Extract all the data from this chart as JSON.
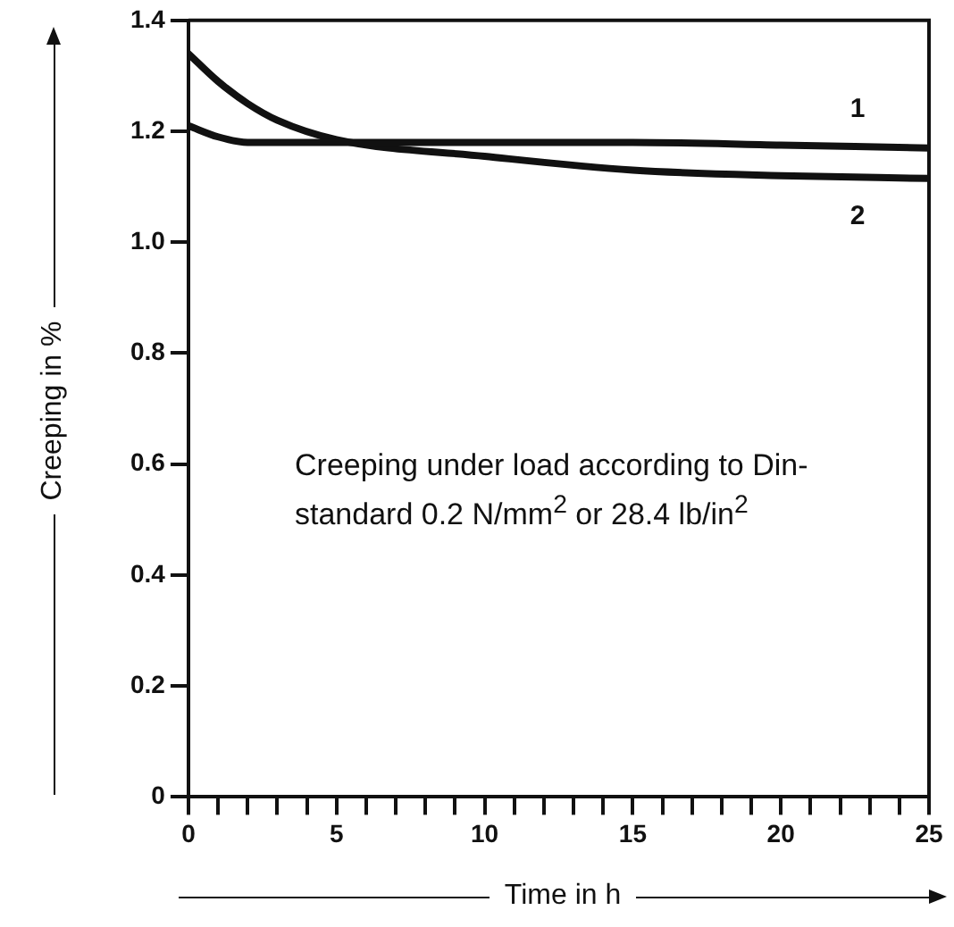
{
  "chart_data": {
    "type": "line",
    "xlabel": "Time in h",
    "ylabel": "Creeping in %",
    "annotations": [
      "Creeping under load according to Din-standard 0.2 N/mm$^{2}$ or 28.4 lb/in$^{2}$"
    ],
    "series": [
      {
        "name": "1",
        "color": "#111111",
        "x": [
          0,
          1,
          2,
          3,
          5,
          10,
          15,
          20,
          25
        ],
        "values": [
          1.21,
          1.19,
          1.18,
          1.18,
          1.18,
          1.18,
          1.18,
          1.175,
          1.17
        ]
      },
      {
        "name": "2",
        "color": "#111111",
        "x": [
          0,
          1,
          2,
          3,
          5,
          10,
          15,
          20,
          25
        ],
        "values": [
          1.34,
          1.29,
          1.25,
          1.22,
          1.185,
          1.155,
          1.13,
          1.12,
          1.115
        ]
      }
    ],
    "xlim": [
      0,
      25
    ],
    "xticks": [
      0,
      {
        "value": 1,
        "label": null
      },
      {
        "value": 2,
        "label": null
      },
      {
        "value": 3,
        "label": null
      },
      {
        "value": 4,
        "label": null
      },
      5,
      {
        "value": 6,
        "label": null
      },
      {
        "value": 7,
        "label": null
      },
      {
        "value": 8,
        "label": null
      },
      {
        "value": 9,
        "label": null
      },
      10,
      {
        "value": 11,
        "label": null
      },
      {
        "value": 12,
        "label": null
      },
      {
        "value": 13,
        "label": null
      },
      {
        "value": 14,
        "label": null
      },
      15,
      {
        "value": 16,
        "label": null
      },
      {
        "value": 17,
        "label": null
      },
      {
        "value": 18,
        "label": null
      },
      {
        "value": 19,
        "label": null
      },
      20,
      {
        "value": 21,
        "label": null
      },
      {
        "value": 22,
        "label": null
      },
      {
        "value": 23,
        "label": null
      },
      {
        "value": 24,
        "label": null
      },
      25
    ],
    "ylim": [
      0,
      1.4
    ],
    "yticks": [
      0,
      0.2,
      0.4,
      0.6,
      0.8,
      {
        "value": 1,
        "label": "1.0"
      },
      1.2,
      1.4
    ],
    "grid": false,
    "legend": false,
    "marker": "none",
    "line_style": "solid"
  }
}
